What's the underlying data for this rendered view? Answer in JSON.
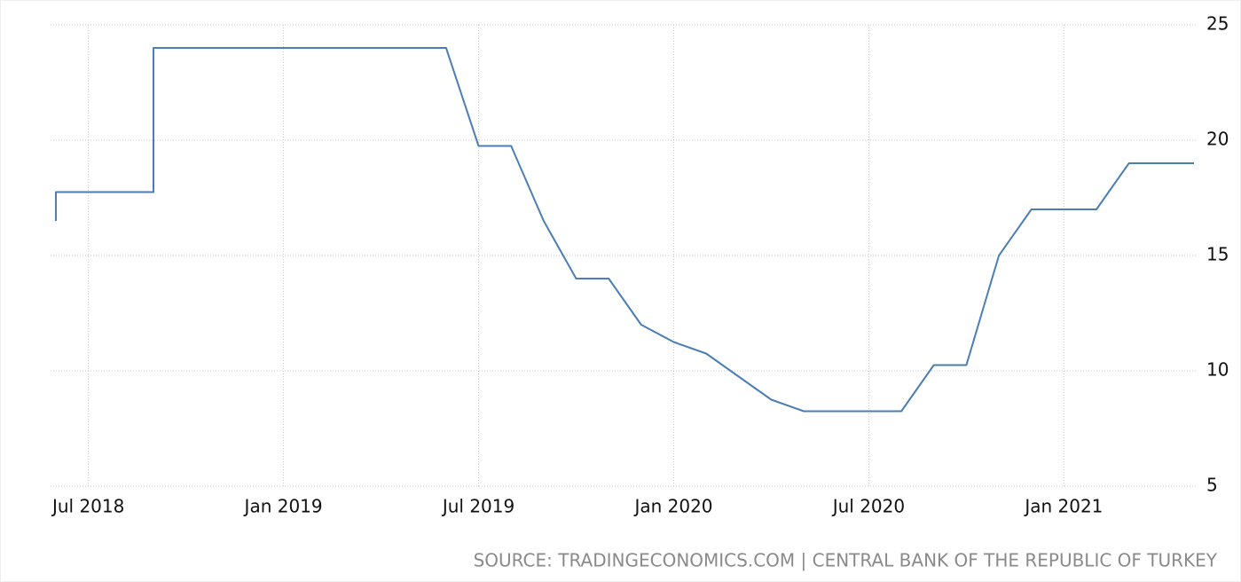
{
  "chart_data": {
    "type": "line",
    "source": "SOURCE: TRADINGECONOMICS.COM | CENTRAL BANK OF THE REPUBLIC OF TURKEY",
    "x": [
      "2018-06",
      "2018-06",
      "2018-09",
      "2018-09",
      "2019-06",
      "2019-07",
      "2019-08",
      "2019-09",
      "2019-10",
      "2019-11",
      "2019-12",
      "2020-01",
      "2020-02",
      "2020-03",
      "2020-04",
      "2020-05",
      "2020-08",
      "2020-09",
      "2020-10",
      "2020-11",
      "2020-12",
      "2021-02",
      "2021-03",
      "2021-05"
    ],
    "series": [
      {
        "color": "#4a7eb5",
        "values": [
          16.5,
          17.75,
          17.75,
          24,
          24,
          19.75,
          19.75,
          16.5,
          14,
          14,
          12,
          11.25,
          10.75,
          9.75,
          8.75,
          8.25,
          8.25,
          10.25,
          10.25,
          15,
          17,
          17,
          19,
          19
        ]
      }
    ],
    "xlim": [
      "2018-06",
      "2021-05"
    ],
    "xticks": [
      {
        "value": "2018-07",
        "label": "Jul 2018"
      },
      {
        "value": "2019-01",
        "label": "Jan 2019"
      },
      {
        "value": "2019-07",
        "label": "Jul 2019"
      },
      {
        "value": "2020-01",
        "label": "Jan 2020"
      },
      {
        "value": "2020-07",
        "label": "Jul 2020"
      },
      {
        "value": "2021-01",
        "label": "Jan 2021"
      }
    ],
    "ylim": [
      5,
      25
    ],
    "yticks": [
      5,
      10,
      15,
      20,
      25
    ],
    "grid": true
  }
}
